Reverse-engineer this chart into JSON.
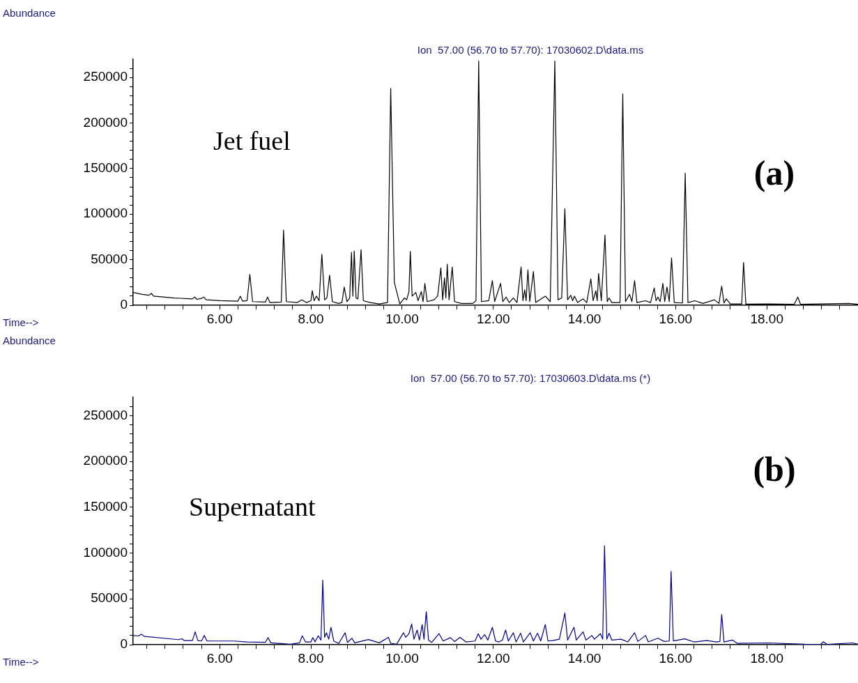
{
  "chart_data": [
    {
      "type": "line",
      "title": "Ion  57.00 (56.70 to 57.70): 17030602.D\\data.ms",
      "ylabel": "Abundance",
      "xlabel": "Time-->",
      "annotations": [
        "Jet fuel",
        "(a)"
      ],
      "legend": false,
      "grid": false,
      "marker": "none",
      "line_style": "solid",
      "xlim": [
        4.1,
        20.0
      ],
      "ylim": [
        0,
        270000
      ],
      "xticks": [
        {
          "value": 4.4,
          "label": null
        },
        {
          "value": 4.8,
          "label": null
        },
        {
          "value": 5.2,
          "label": null
        },
        {
          "value": 5.6,
          "label": null
        },
        {
          "value": 6,
          "label": "6.00"
        },
        {
          "value": 6.4,
          "label": null
        },
        {
          "value": 6.8,
          "label": null
        },
        {
          "value": 7.2,
          "label": null
        },
        {
          "value": 7.6,
          "label": null
        },
        {
          "value": 8,
          "label": "8.00"
        },
        {
          "value": 8.4,
          "label": null
        },
        {
          "value": 8.8,
          "label": null
        },
        {
          "value": 9.2,
          "label": null
        },
        {
          "value": 9.6,
          "label": null
        },
        {
          "value": 10,
          "label": "10.00"
        },
        {
          "value": 10.4,
          "label": null
        },
        {
          "value": 10.8,
          "label": null
        },
        {
          "value": 11.2,
          "label": null
        },
        {
          "value": 11.6,
          "label": null
        },
        {
          "value": 12,
          "label": "12.00"
        },
        {
          "value": 12.4,
          "label": null
        },
        {
          "value": 12.8,
          "label": null
        },
        {
          "value": 13.2,
          "label": null
        },
        {
          "value": 13.6,
          "label": null
        },
        {
          "value": 14,
          "label": "14.00"
        },
        {
          "value": 14.4,
          "label": null
        },
        {
          "value": 14.8,
          "label": null
        },
        {
          "value": 15.2,
          "label": null
        },
        {
          "value": 15.6,
          "label": null
        },
        {
          "value": 16,
          "label": "16.00"
        },
        {
          "value": 16.4,
          "label": null
        },
        {
          "value": 16.8,
          "label": null
        },
        {
          "value": 17.2,
          "label": null
        },
        {
          "value": 17.6,
          "label": null
        },
        {
          "value": 18,
          "label": "18.00"
        },
        {
          "value": 18.4,
          "label": null
        },
        {
          "value": 18.8,
          "label": null
        },
        {
          "value": 19.2,
          "label": null
        },
        {
          "value": 19.6,
          "label": null
        }
      ],
      "yticks": [
        0,
        {
          "value": 10000,
          "label": null
        },
        {
          "value": 20000,
          "label": null
        },
        {
          "value": 30000,
          "label": null
        },
        {
          "value": 40000,
          "label": null
        },
        50000,
        {
          "value": 60000,
          "label": null
        },
        {
          "value": 70000,
          "label": null
        },
        {
          "value": 80000,
          "label": null
        },
        {
          "value": 90000,
          "label": null
        },
        100000,
        {
          "value": 110000,
          "label": null
        },
        {
          "value": 120000,
          "label": null
        },
        {
          "value": 130000,
          "label": null
        },
        {
          "value": 140000,
          "label": null
        },
        150000,
        {
          "value": 160000,
          "label": null
        },
        {
          "value": 170000,
          "label": null
        },
        {
          "value": 180000,
          "label": null
        },
        {
          "value": 190000,
          "label": null
        },
        200000,
        {
          "value": 210000,
          "label": null
        },
        {
          "value": 220000,
          "label": null
        },
        {
          "value": 230000,
          "label": null
        },
        {
          "value": 240000,
          "label": null
        },
        250000,
        {
          "value": 260000,
          "label": null
        }
      ],
      "series": [
        {
          "color": "#000000",
          "x": [
            4.1,
            4.3,
            4.45,
            4.5,
            4.55,
            5.0,
            5.4,
            5.45,
            5.5,
            5.6,
            5.65,
            5.7,
            6.0,
            6.4,
            6.45,
            6.5,
            6.6,
            6.66,
            6.72,
            7.0,
            7.05,
            7.1,
            7.35,
            7.4,
            7.46,
            7.7,
            7.8,
            7.9,
            8.0,
            8.03,
            8.07,
            8.12,
            8.18,
            8.24,
            8.3,
            8.35,
            8.41,
            8.47,
            8.6,
            8.68,
            8.73,
            8.79,
            8.85,
            8.89,
            8.92,
            8.95,
            8.99,
            9.03,
            9.1,
            9.15,
            9.3,
            9.5,
            9.68,
            9.75,
            9.83,
            9.95,
            10.05,
            10.1,
            10.15,
            10.18,
            10.22,
            10.3,
            10.35,
            10.42,
            10.46,
            10.5,
            10.55,
            10.7,
            10.78,
            10.85,
            10.89,
            10.93,
            10.96,
            10.99,
            11.03,
            11.1,
            11.15,
            11.3,
            11.55,
            11.62,
            11.68,
            11.74,
            11.9,
            11.98,
            12.03,
            12.16,
            12.21,
            12.28,
            12.35,
            12.44,
            12.52,
            12.61,
            12.65,
            12.69,
            12.72,
            12.76,
            12.8,
            12.88,
            12.93,
            13.14,
            13.25,
            13.35,
            13.42,
            13.5,
            13.57,
            13.63,
            13.7,
            13.74,
            13.78,
            13.85,
            13.97,
            14.05,
            14.14,
            14.19,
            14.25,
            14.28,
            14.31,
            14.37,
            14.45,
            14.5,
            14.54,
            14.6,
            14.78,
            14.84,
            14.9,
            14.99,
            15.04,
            15.1,
            15.15,
            15.34,
            15.45,
            15.53,
            15.57,
            15.61,
            15.66,
            15.72,
            15.76,
            15.81,
            15.86,
            15.91,
            15.97,
            16.15,
            16.21,
            16.27,
            16.42,
            16.6,
            16.85,
            16.95,
            17.01,
            17.06,
            17.11,
            17.2,
            17.45,
            17.49,
            17.54,
            18.03,
            18.6,
            18.68,
            18.74,
            19.8,
            20.0
          ],
          "values": [
            14000,
            12000,
            11000,
            13000,
            10000,
            8000,
            7000,
            9000,
            6500,
            7500,
            9000,
            6000,
            5000,
            4500,
            10000,
            4500,
            5000,
            34000,
            4000,
            3500,
            9000,
            3000,
            3500,
            82500,
            4000,
            3000,
            6000,
            3000,
            5000,
            16000,
            5000,
            10000,
            5000,
            56000,
            6000,
            8000,
            33000,
            4000,
            2000,
            3000,
            20000,
            4000,
            8000,
            58000,
            10000,
            59500,
            8000,
            7000,
            61000,
            5000,
            3000,
            1500,
            3000,
            238000,
            25000,
            1500,
            8000,
            6000,
            15000,
            59000,
            10000,
            14000,
            5000,
            15000,
            4000,
            24000,
            4000,
            6000,
            10000,
            41000,
            6000,
            30000,
            8000,
            45000,
            6000,
            42000,
            4000,
            2000,
            2000,
            5000,
            268000,
            4000,
            5000,
            27000,
            4000,
            24000,
            4000,
            9000,
            3000,
            8000,
            3000,
            42000,
            5000,
            17000,
            5000,
            39000,
            4000,
            37000,
            3000,
            10000,
            4000,
            268000,
            6000,
            8000,
            106000,
            6000,
            11000,
            5000,
            10000,
            3000,
            7000,
            3000,
            29000,
            5000,
            16000,
            5000,
            35000,
            5000,
            77000,
            4000,
            8000,
            3000,
            3000,
            232000,
            4000,
            12000,
            4000,
            27000,
            3000,
            5000,
            3000,
            19000,
            5000,
            9000,
            4000,
            24000,
            4000,
            20000,
            4000,
            52000,
            3000,
            2500,
            145000,
            3000,
            5000,
            2000,
            6000,
            2000,
            21000,
            2500,
            7000,
            1500,
            1500,
            47000,
            1200,
            1500,
            1000,
            9000,
            1000,
            2000,
            1000
          ]
        }
      ]
    },
    {
      "type": "line",
      "title": "Ion  57.00 (56.70 to 57.70): 17030603.D\\data.ms (*)",
      "ylabel": "Abundance",
      "xlabel": "Time-->",
      "annotations": [
        "Supernatant",
        "(b)"
      ],
      "legend": false,
      "grid": false,
      "marker": "none",
      "line_style": "solid",
      "xlim": [
        4.1,
        20.0
      ],
      "ylim": [
        0,
        270000
      ],
      "xticks": [
        {
          "value": 4.4,
          "label": null
        },
        {
          "value": 4.8,
          "label": null
        },
        {
          "value": 5.2,
          "label": null
        },
        {
          "value": 5.6,
          "label": null
        },
        {
          "value": 6,
          "label": "6.00"
        },
        {
          "value": 6.4,
          "label": null
        },
        {
          "value": 6.8,
          "label": null
        },
        {
          "value": 7.2,
          "label": null
        },
        {
          "value": 7.6,
          "label": null
        },
        {
          "value": 8,
          "label": "8.00"
        },
        {
          "value": 8.4,
          "label": null
        },
        {
          "value": 8.8,
          "label": null
        },
        {
          "value": 9.2,
          "label": null
        },
        {
          "value": 9.6,
          "label": null
        },
        {
          "value": 10,
          "label": "10.00"
        },
        {
          "value": 10.4,
          "label": null
        },
        {
          "value": 10.8,
          "label": null
        },
        {
          "value": 11.2,
          "label": null
        },
        {
          "value": 11.6,
          "label": null
        },
        {
          "value": 12,
          "label": "12.00"
        },
        {
          "value": 12.4,
          "label": null
        },
        {
          "value": 12.8,
          "label": null
        },
        {
          "value": 13.2,
          "label": null
        },
        {
          "value": 13.6,
          "label": null
        },
        {
          "value": 14,
          "label": "14.00"
        },
        {
          "value": 14.4,
          "label": null
        },
        {
          "value": 14.8,
          "label": null
        },
        {
          "value": 15.2,
          "label": null
        },
        {
          "value": 15.6,
          "label": null
        },
        {
          "value": 16,
          "label": "16.00"
        },
        {
          "value": 16.4,
          "label": null
        },
        {
          "value": 16.8,
          "label": null
        },
        {
          "value": 17.2,
          "label": null
        },
        {
          "value": 17.6,
          "label": null
        },
        {
          "value": 18,
          "label": "18.00"
        },
        {
          "value": 18.4,
          "label": null
        },
        {
          "value": 18.8,
          "label": null
        },
        {
          "value": 19.2,
          "label": null
        },
        {
          "value": 19.6,
          "label": null
        }
      ],
      "yticks": [
        0,
        {
          "value": 10000,
          "label": null
        },
        {
          "value": 20000,
          "label": null
        },
        {
          "value": 30000,
          "label": null
        },
        {
          "value": 40000,
          "label": null
        },
        50000,
        {
          "value": 60000,
          "label": null
        },
        {
          "value": 70000,
          "label": null
        },
        {
          "value": 80000,
          "label": null
        },
        {
          "value": 90000,
          "label": null
        },
        100000,
        {
          "value": 110000,
          "label": null
        },
        {
          "value": 120000,
          "label": null
        },
        {
          "value": 130000,
          "label": null
        },
        {
          "value": 140000,
          "label": null
        },
        150000,
        {
          "value": 160000,
          "label": null
        },
        {
          "value": 170000,
          "label": null
        },
        {
          "value": 180000,
          "label": null
        },
        {
          "value": 190000,
          "label": null
        },
        200000,
        {
          "value": 210000,
          "label": null
        },
        {
          "value": 220000,
          "label": null
        },
        {
          "value": 230000,
          "label": null
        },
        {
          "value": 240000,
          "label": null
        },
        250000,
        {
          "value": 260000,
          "label": null
        }
      ],
      "series": [
        {
          "color": "#000080",
          "x": [
            4.1,
            4.22,
            4.28,
            4.35,
            5.1,
            5.17,
            5.22,
            5.4,
            5.46,
            5.52,
            5.6,
            5.66,
            5.72,
            6.31,
            6.6,
            7.0,
            7.06,
            7.12,
            7.55,
            7.75,
            7.81,
            7.88,
            8.0,
            8.04,
            8.09,
            8.16,
            8.22,
            8.26,
            8.3,
            8.34,
            8.39,
            8.44,
            8.5,
            8.61,
            8.75,
            8.8,
            8.9,
            8.96,
            9.26,
            9.5,
            9.7,
            9.75,
            9.88,
            10.03,
            10.08,
            10.15,
            10.21,
            10.26,
            10.33,
            10.38,
            10.44,
            10.48,
            10.53,
            10.58,
            10.65,
            10.81,
            10.9,
            11.06,
            11.15,
            11.27,
            11.4,
            11.6,
            11.67,
            11.73,
            11.81,
            11.88,
            11.98,
            12.05,
            12.12,
            12.2,
            12.27,
            12.33,
            12.44,
            12.5,
            12.6,
            12.66,
            12.81,
            12.88,
            12.97,
            13.04,
            13.14,
            13.2,
            13.3,
            13.45,
            13.57,
            13.63,
            13.77,
            13.82,
            13.97,
            14.03,
            14.16,
            14.22,
            14.35,
            14.4,
            14.44,
            14.49,
            14.54,
            14.6,
            14.8,
            14.95,
            15.1,
            15.17,
            15.34,
            15.4,
            15.61,
            15.75,
            15.86,
            15.9,
            15.95,
            15.99,
            16.2,
            16.4,
            16.68,
            16.9,
            16.97,
            17.01,
            17.06,
            17.25,
            17.35,
            18.03,
            18.83,
            19.18,
            19.24,
            19.32,
            19.88,
            20.0
          ],
          "values": [
            10000,
            9500,
            11500,
            9000,
            5500,
            6500,
            4500,
            4500,
            14000,
            4500,
            4000,
            10000,
            4000,
            4000,
            3000,
            2500,
            7700,
            2000,
            500,
            2000,
            9700,
            3000,
            3000,
            7700,
            3000,
            9700,
            5000,
            70500,
            8000,
            13000,
            6000,
            19000,
            4000,
            1300,
            13000,
            2500,
            7000,
            2000,
            5600,
            2000,
            8000,
            1500,
            500,
            13000,
            8000,
            12000,
            22500,
            6000,
            16000,
            5000,
            22000,
            6000,
            36000,
            5000,
            2500,
            12000,
            4000,
            7700,
            3500,
            8000,
            3000,
            4000,
            12000,
            6000,
            11000,
            5000,
            19000,
            4000,
            3000,
            5000,
            16000,
            4000,
            13000,
            3000,
            12500,
            3000,
            13000,
            4000,
            12500,
            4000,
            22000,
            4000,
            4500,
            6000,
            34500,
            5000,
            19000,
            5000,
            14000,
            5000,
            10000,
            6000,
            12000,
            6000,
            108000,
            6000,
            12500,
            5000,
            6000,
            3000,
            13000,
            3500,
            10000,
            3000,
            7000,
            3500,
            4000,
            80000,
            4000,
            4500,
            6400,
            3000,
            4500,
            3000,
            3500,
            33000,
            3000,
            5000,
            1500,
            1900,
            500,
            300,
            3200,
            300,
            1900,
            500
          ]
        }
      ]
    }
  ]
}
